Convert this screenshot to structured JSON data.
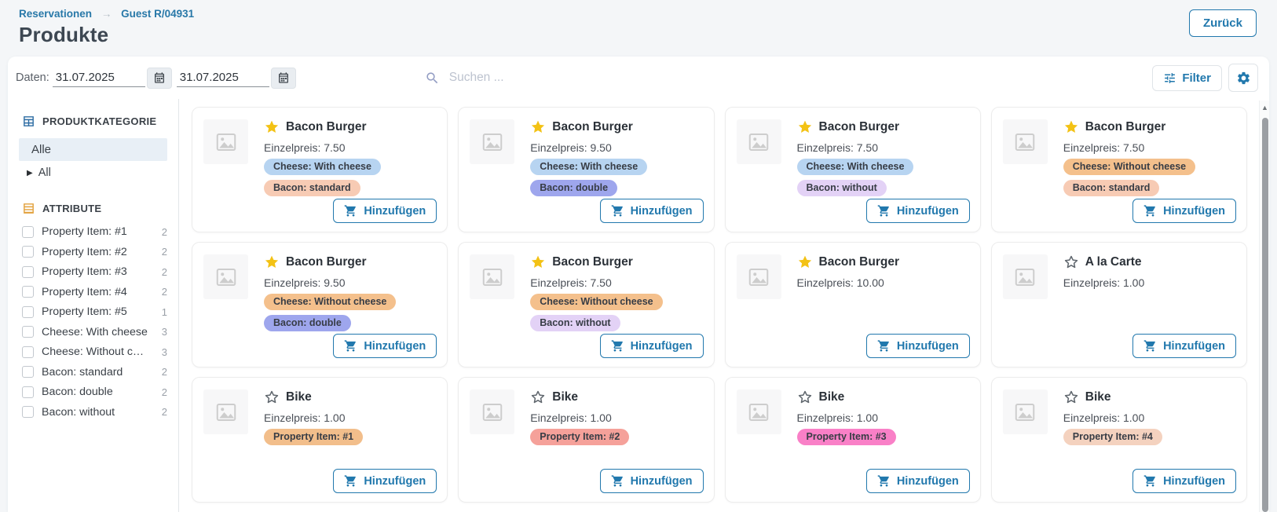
{
  "colors": {
    "accent": "#2178ad",
    "link": "#2878a8",
    "star_filled": "#f3c215",
    "category_icon": "#2d6ca3",
    "attribute_icon": "#e2a13c"
  },
  "header": {
    "breadcrumb": [
      "Reservationen",
      "Guest R/04931"
    ],
    "separator": "→",
    "title": "Produkte",
    "back_button": "Zurück"
  },
  "toolbar": {
    "dates_label": "Daten:",
    "date_from": "31.07.2025",
    "date_to": "31.07.2025",
    "search_placeholder": "Suchen ...",
    "filter_button": "Filter"
  },
  "sidebar": {
    "categories": {
      "title": "PRODUKTKATEGORIE",
      "selected_item": "Alle",
      "tree_item": "All"
    },
    "attributes": {
      "title": "ATTRIBUTE",
      "items": [
        {
          "label": "Property Item: #1",
          "count": "2"
        },
        {
          "label": "Property Item: #2",
          "count": "2"
        },
        {
          "label": "Property Item: #3",
          "count": "2"
        },
        {
          "label": "Property Item: #4",
          "count": "2"
        },
        {
          "label": "Property Item: #5",
          "count": "1"
        },
        {
          "label": "Cheese: With cheese",
          "count": "3"
        },
        {
          "label": "Cheese: Without cheese",
          "count": "3"
        },
        {
          "label": "Bacon: standard",
          "count": "2"
        },
        {
          "label": "Bacon: double",
          "count": "2"
        },
        {
          "label": "Bacon: without",
          "count": "2"
        }
      ]
    }
  },
  "cards": {
    "price_prefix": "Einzelpreis:",
    "add_button": "Hinzufügen",
    "items": [
      {
        "name": "Bacon Burger",
        "starred": true,
        "price": "7.50",
        "tags": [
          {
            "label": "Cheese: With cheese",
            "bg": "#b7d4f1"
          },
          {
            "label": "Bacon: standard",
            "bg": "#f7cbb4"
          }
        ]
      },
      {
        "name": "Bacon Burger",
        "starred": true,
        "price": "9.50",
        "tags": [
          {
            "label": "Cheese: With cheese",
            "bg": "#b7d4f1"
          },
          {
            "label": "Bacon: double",
            "bg": "#9ea6ed"
          }
        ]
      },
      {
        "name": "Bacon Burger",
        "starred": true,
        "price": "7.50",
        "tags": [
          {
            "label": "Cheese: With cheese",
            "bg": "#b7d4f1"
          },
          {
            "label": "Bacon: without",
            "bg": "#e3d2f6"
          }
        ]
      },
      {
        "name": "Bacon Burger",
        "starred": true,
        "price": "7.50",
        "tags": [
          {
            "label": "Cheese: Without cheese",
            "bg": "#f4c08c"
          },
          {
            "label": "Bacon: standard",
            "bg": "#f7cbb4"
          }
        ]
      },
      {
        "name": "Bacon Burger",
        "starred": true,
        "price": "9.50",
        "tags": [
          {
            "label": "Cheese: Without cheese",
            "bg": "#f4c08c"
          },
          {
            "label": "Bacon: double",
            "bg": "#9ea6ed"
          }
        ]
      },
      {
        "name": "Bacon Burger",
        "starred": true,
        "price": "7.50",
        "tags": [
          {
            "label": "Cheese: Without cheese",
            "bg": "#f4c08c"
          },
          {
            "label": "Bacon: without",
            "bg": "#e3d2f6"
          }
        ]
      },
      {
        "name": "Bacon Burger",
        "starred": true,
        "price": "10.00",
        "tags": []
      },
      {
        "name": "A la Carte",
        "starred": false,
        "price": "1.00",
        "tags": []
      },
      {
        "name": "Bike",
        "starred": false,
        "price": "1.00",
        "tags": [
          {
            "label": "Property Item: #1",
            "bg": "#f2be8b"
          }
        ]
      },
      {
        "name": "Bike",
        "starred": false,
        "price": "1.00",
        "tags": [
          {
            "label": "Property Item: #2",
            "bg": "#f5a19a"
          }
        ]
      },
      {
        "name": "Bike",
        "starred": false,
        "price": "1.00",
        "tags": [
          {
            "label": "Property Item: #3",
            "bg": "#f980c7"
          }
        ]
      },
      {
        "name": "Bike",
        "starred": false,
        "price": "1.00",
        "tags": [
          {
            "label": "Property Item: #4",
            "bg": "#f4d2bf"
          }
        ]
      }
    ]
  },
  "scrollbar": {
    "up_arrow": "▲"
  }
}
